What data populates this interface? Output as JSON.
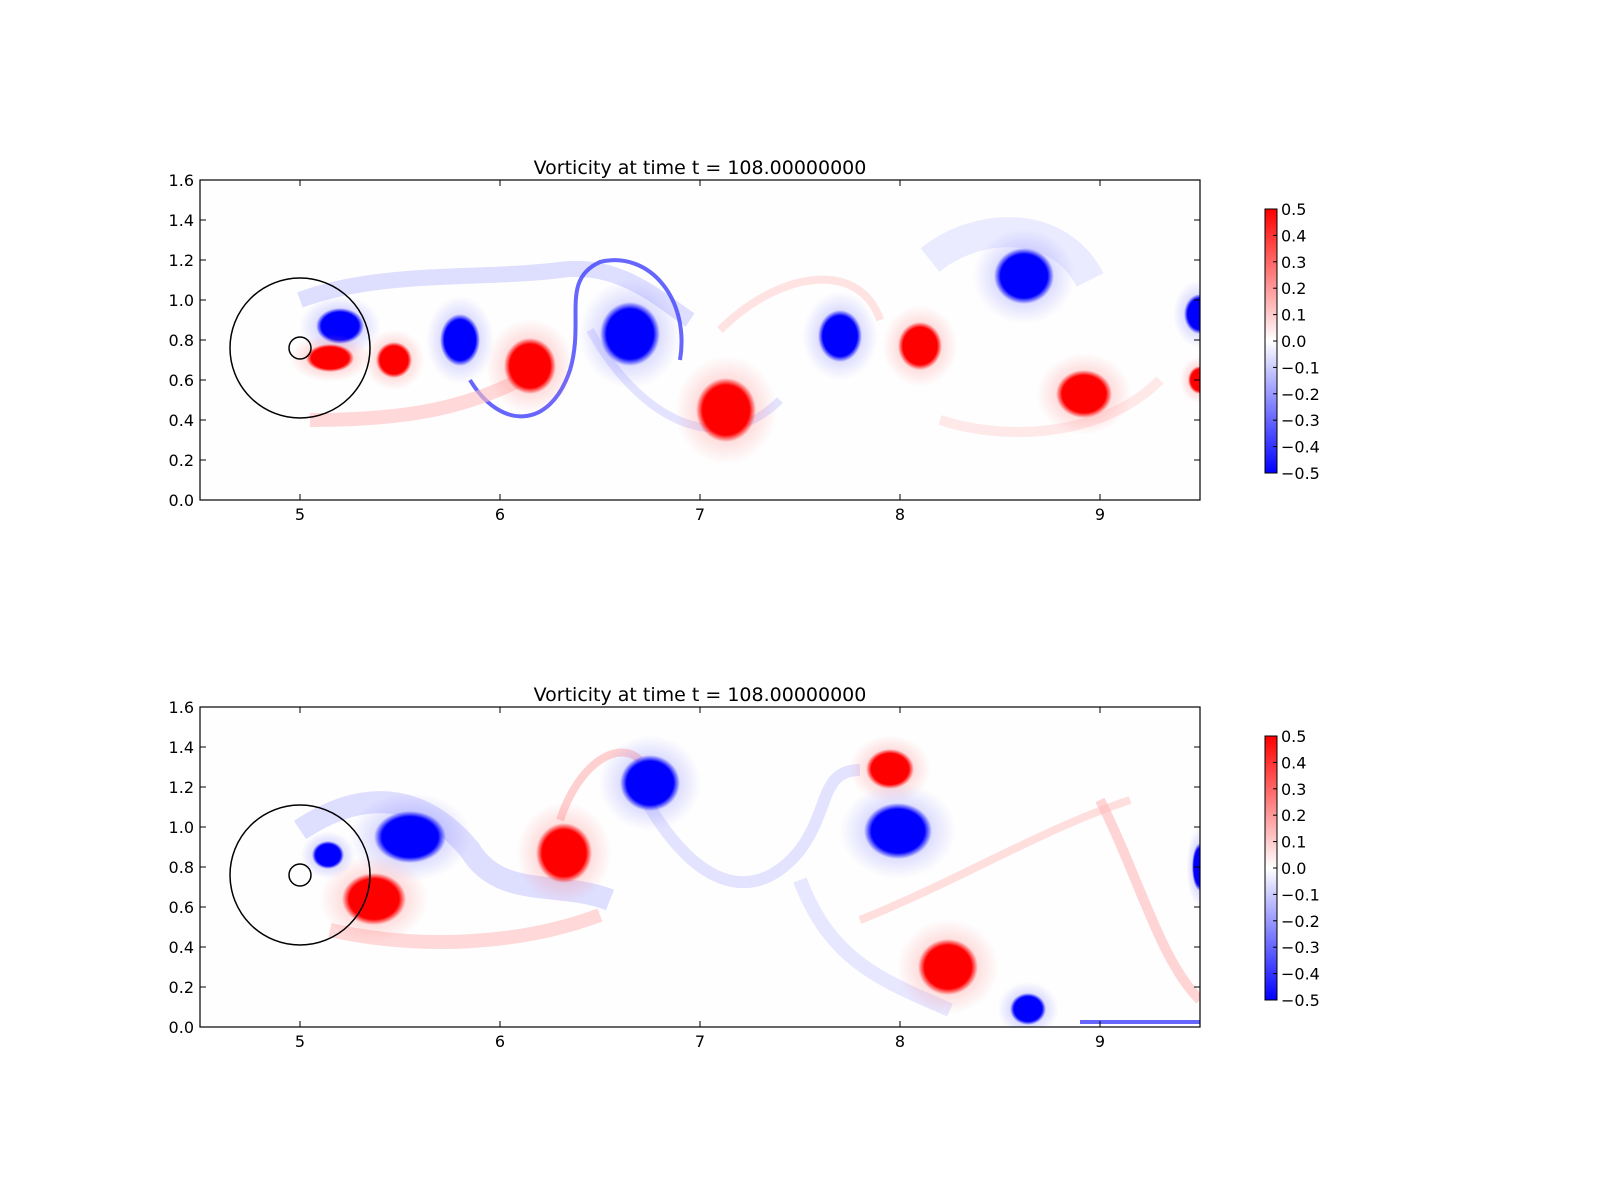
{
  "chart_data": [
    {
      "type": "heatmap",
      "title": "Vorticity at time t =   108.00000000",
      "xlim": [
        4.5,
        9.5
      ],
      "ylim": [
        0.0,
        1.6
      ],
      "xticks": [
        "5",
        "6",
        "7",
        "8",
        "9"
      ],
      "yticks": [
        "0.0",
        "0.2",
        "0.4",
        "0.6",
        "0.8",
        "1.0",
        "1.2",
        "1.4",
        "1.6"
      ],
      "colorbar": {
        "range": [
          -0.5,
          0.5
        ],
        "ticks": [
          "0.5",
          "0.4",
          "0.3",
          "0.2",
          "0.1",
          "0.0",
          "−0.1",
          "−0.2",
          "−0.3",
          "−0.4",
          "−0.5"
        ],
        "colors": {
          "negative": "#0000ff",
          "zero": "#ffffff",
          "positive": "#ff0000"
        }
      },
      "grid": false,
      "circles": [
        {
          "cx": 5.0,
          "cy": 0.76,
          "r": 0.35
        },
        {
          "cx": 5.0,
          "cy": 0.76,
          "r": 0.055
        }
      ],
      "vortex_cores": [
        {
          "x": 5.2,
          "y": 0.87,
          "rx": 0.12,
          "ry": 0.09,
          "value": -0.5
        },
        {
          "x": 5.15,
          "y": 0.71,
          "rx": 0.12,
          "ry": 0.07,
          "value": 0.5
        },
        {
          "x": 5.47,
          "y": 0.7,
          "rx": 0.09,
          "ry": 0.09,
          "value": 0.5
        },
        {
          "x": 5.8,
          "y": 0.8,
          "rx": 0.1,
          "ry": 0.13,
          "value": -0.5
        },
        {
          "x": 6.15,
          "y": 0.67,
          "rx": 0.13,
          "ry": 0.14,
          "value": 0.5
        },
        {
          "x": 6.65,
          "y": 0.83,
          "rx": 0.15,
          "ry": 0.16,
          "value": -0.5
        },
        {
          "x": 7.13,
          "y": 0.45,
          "rx": 0.15,
          "ry": 0.16,
          "value": 0.5
        },
        {
          "x": 7.7,
          "y": 0.82,
          "rx": 0.11,
          "ry": 0.13,
          "value": -0.5
        },
        {
          "x": 8.1,
          "y": 0.77,
          "rx": 0.11,
          "ry": 0.12,
          "value": 0.5
        },
        {
          "x": 8.62,
          "y": 1.12,
          "rx": 0.15,
          "ry": 0.14,
          "value": -0.5
        },
        {
          "x": 8.92,
          "y": 0.53,
          "rx": 0.14,
          "ry": 0.12,
          "value": 0.5
        },
        {
          "x": 9.5,
          "y": 0.93,
          "rx": 0.08,
          "ry": 0.1,
          "value": -0.5
        },
        {
          "x": 9.5,
          "y": 0.6,
          "rx": 0.06,
          "ry": 0.07,
          "value": 0.5
        }
      ]
    },
    {
      "type": "heatmap",
      "title": "Vorticity at time t =   108.00000000",
      "xlim": [
        4.5,
        9.5
      ],
      "ylim": [
        0.0,
        1.6
      ],
      "xticks": [
        "5",
        "6",
        "7",
        "8",
        "9"
      ],
      "yticks": [
        "0.0",
        "0.2",
        "0.4",
        "0.6",
        "0.8",
        "1.0",
        "1.2",
        "1.4",
        "1.6"
      ],
      "colorbar": {
        "range": [
          -0.5,
          0.5
        ],
        "ticks": [
          "0.5",
          "0.4",
          "0.3",
          "0.2",
          "0.1",
          "0.0",
          "−0.1",
          "−0.2",
          "−0.3",
          "−0.4",
          "−0.5"
        ],
        "colors": {
          "negative": "#0000ff",
          "zero": "#ffffff",
          "positive": "#ff0000"
        }
      },
      "grid": false,
      "circles": [
        {
          "cx": 5.0,
          "cy": 0.76,
          "r": 0.35
        },
        {
          "cx": 5.0,
          "cy": 0.76,
          "r": 0.055
        }
      ],
      "vortex_cores": [
        {
          "x": 5.14,
          "y": 0.86,
          "rx": 0.08,
          "ry": 0.07,
          "value": -0.5
        },
        {
          "x": 5.55,
          "y": 0.95,
          "rx": 0.18,
          "ry": 0.13,
          "value": -0.5
        },
        {
          "x": 5.37,
          "y": 0.64,
          "rx": 0.16,
          "ry": 0.13,
          "value": 0.5
        },
        {
          "x": 6.32,
          "y": 0.87,
          "rx": 0.14,
          "ry": 0.15,
          "value": 0.5
        },
        {
          "x": 6.75,
          "y": 1.22,
          "rx": 0.15,
          "ry": 0.14,
          "value": -0.5
        },
        {
          "x": 7.95,
          "y": 1.29,
          "rx": 0.12,
          "ry": 0.1,
          "value": 0.5
        },
        {
          "x": 7.99,
          "y": 0.98,
          "rx": 0.17,
          "ry": 0.14,
          "value": -0.5
        },
        {
          "x": 8.24,
          "y": 0.3,
          "rx": 0.15,
          "ry": 0.14,
          "value": 0.5
        },
        {
          "x": 8.64,
          "y": 0.09,
          "rx": 0.09,
          "ry": 0.08,
          "value": -0.5
        },
        {
          "x": 9.5,
          "y": 0.8,
          "rx": 0.04,
          "ry": 0.12,
          "value": -0.5
        }
      ]
    }
  ]
}
